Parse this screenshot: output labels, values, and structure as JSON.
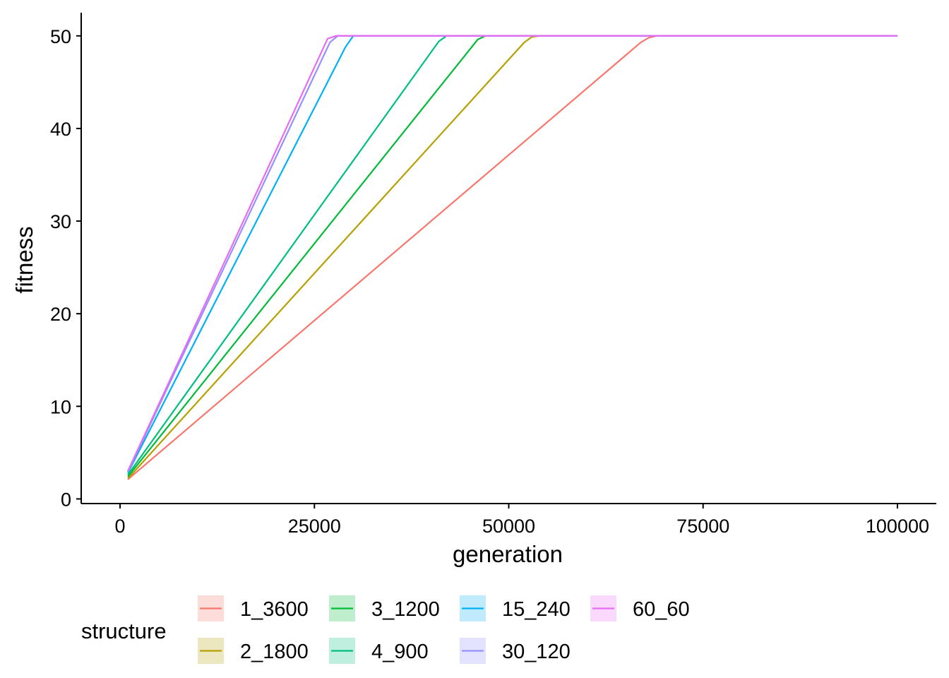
{
  "chart_data": {
    "type": "line",
    "title": "",
    "xlabel": "generation",
    "ylabel": "fitness",
    "xlim": [
      -5000,
      105000
    ],
    "ylim": [
      -0.5,
      52.5
    ],
    "x_ticks": [
      0,
      25000,
      50000,
      75000,
      100000
    ],
    "y_ticks": [
      0,
      10,
      20,
      30,
      40,
      50
    ],
    "grid": false,
    "legend": {
      "title": "structure",
      "position": "bottom"
    },
    "series": [
      {
        "name": "1_3600",
        "color": "#F8766D",
        "points": [
          [
            1000,
            2.1
          ],
          [
            67000,
            49.3
          ],
          [
            68000,
            49.8
          ],
          [
            69000,
            50
          ],
          [
            100000,
            50
          ]
        ]
      },
      {
        "name": "2_1800",
        "color": "#B79F00",
        "points": [
          [
            1000,
            2.2
          ],
          [
            52000,
            49.3
          ],
          [
            53000,
            49.9
          ],
          [
            54000,
            50
          ],
          [
            100000,
            50
          ]
        ]
      },
      {
        "name": "3_1200",
        "color": "#00BA38",
        "points": [
          [
            1000,
            2.4
          ],
          [
            46000,
            49.6
          ],
          [
            47000,
            50
          ],
          [
            100000,
            50
          ]
        ]
      },
      {
        "name": "4_900",
        "color": "#00BF7D",
        "points": [
          [
            1000,
            2.6
          ],
          [
            41000,
            49.4
          ],
          [
            42000,
            50
          ],
          [
            100000,
            50
          ]
        ]
      },
      {
        "name": "15_240",
        "color": "#00B0F6",
        "points": [
          [
            1000,
            2.8
          ],
          [
            29000,
            48.8
          ],
          [
            30000,
            50
          ],
          [
            100000,
            50
          ]
        ]
      },
      {
        "name": "30_120",
        "color": "#9590FF",
        "points": [
          [
            1000,
            2.9
          ],
          [
            27000,
            49.3
          ],
          [
            28000,
            50
          ],
          [
            100000,
            50
          ]
        ]
      },
      {
        "name": "60_60",
        "color": "#E76BF3",
        "points": [
          [
            1000,
            3.0
          ],
          [
            26700,
            49.7
          ],
          [
            27800,
            50
          ],
          [
            100000,
            50
          ]
        ]
      }
    ]
  }
}
